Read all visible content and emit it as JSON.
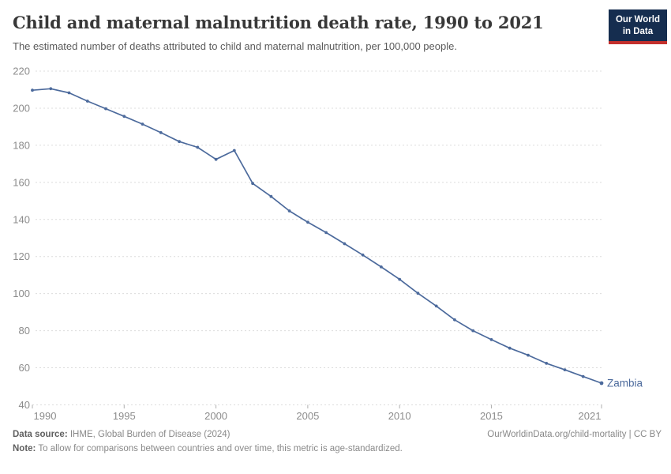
{
  "header": {
    "title": "Child and maternal malnutrition death rate, 1990 to 2021",
    "subtitle": "The estimated number of deaths attributed to child and maternal malnutrition, per 100,000 people."
  },
  "logo": {
    "line1": "Our World",
    "line2": "in Data",
    "bg_color": "#152d4f",
    "bar_color": "#c3302d"
  },
  "chart_data": {
    "type": "line",
    "title": "Child and maternal malnutrition death rate, 1990 to 2021",
    "subtitle": "The estimated number of deaths attributed to child and maternal malnutrition, per 100,000 people.",
    "xlabel": "",
    "ylabel": "",
    "x": [
      1990,
      1991,
      1992,
      1993,
      1994,
      1995,
      1996,
      1997,
      1998,
      1999,
      2000,
      2001,
      2002,
      2003,
      2004,
      2005,
      2006,
      2007,
      2008,
      2009,
      2010,
      2011,
      2012,
      2013,
      2014,
      2015,
      2016,
      2017,
      2018,
      2019,
      2020,
      2021
    ],
    "series": [
      {
        "name": "Zambia",
        "color": "#4c6a9c",
        "values": [
          209.7,
          210.5,
          208.3,
          203.8,
          199.7,
          195.6,
          191.4,
          186.8,
          182.0,
          178.9,
          172.4,
          177.2,
          159.4,
          152.4,
          144.6,
          138.5,
          132.9,
          126.9,
          120.8,
          114.4,
          107.7,
          100.2,
          93.3,
          85.9,
          80.0,
          75.2,
          70.6,
          66.8,
          62.4,
          58.9,
          55.3,
          51.7
        ]
      }
    ],
    "end_label": "Zambia",
    "xlim": [
      1990,
      2021
    ],
    "ylim": [
      40,
      220
    ],
    "xticks": [
      1990,
      1995,
      2000,
      2005,
      2010,
      2015,
      2021
    ],
    "yticks": [
      40,
      60,
      80,
      100,
      120,
      140,
      160,
      180,
      200,
      220
    ],
    "grid": true,
    "grid_color": "#dcdcdc",
    "tick_text_color": "#8c8c8c",
    "tick_mark_color": "#afafaf",
    "legend_position": "end-of-line"
  },
  "footer": {
    "source_label": "Data source:",
    "source_text": " IHME, Global Burden of Disease (2024)",
    "link": "OurWorldinData.org/child-mortality | CC BY",
    "note_label": "Note:",
    "note_text": " To allow for comparisons between countries and over time, this metric is age-standardized."
  }
}
